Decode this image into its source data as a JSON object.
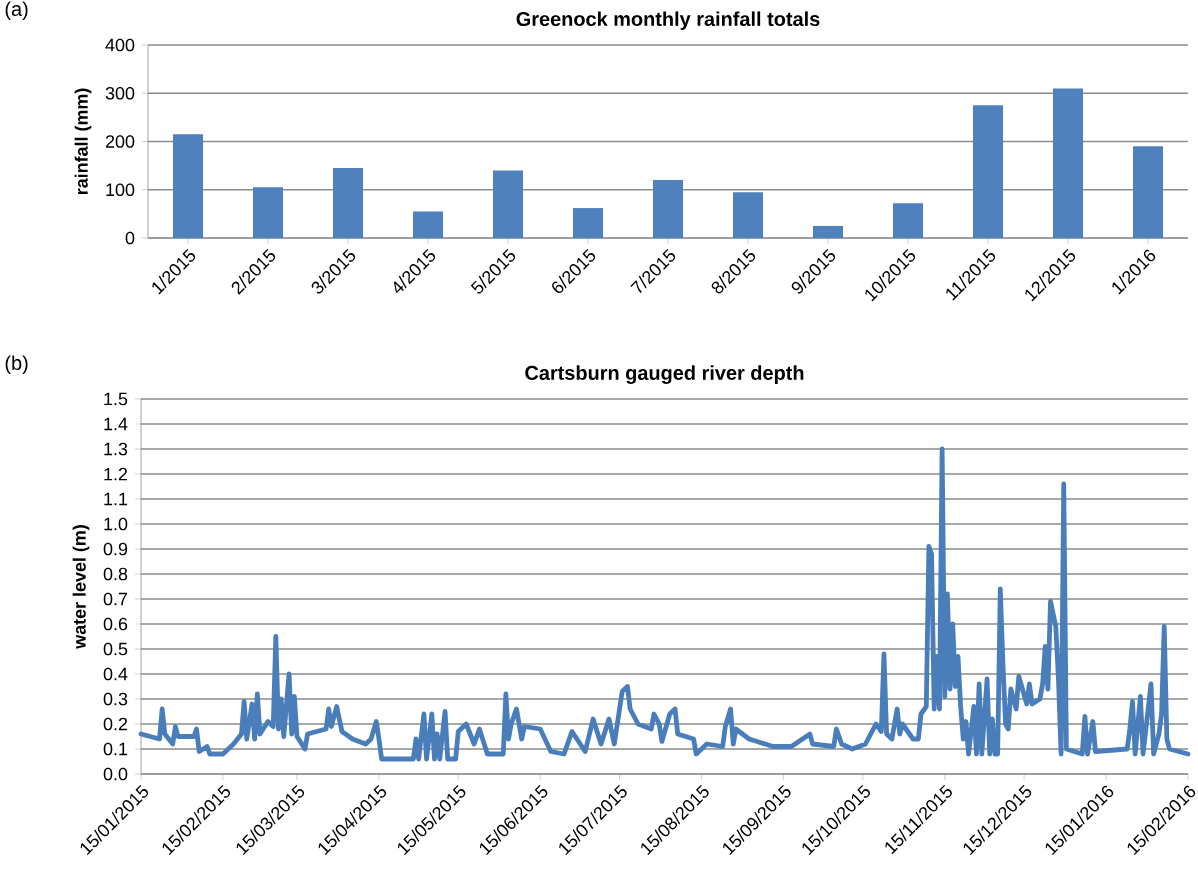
{
  "chart_data": [
    {
      "type": "bar",
      "title": "Greenock monthly rainfall totals",
      "ylabel": "rainfall (mm)",
      "annotations": [
        "(a)"
      ],
      "categories": [
        "1/2015",
        "2/2015",
        "3/2015",
        "4/2015",
        "5/2015",
        "6/2015",
        "7/2015",
        "8/2015",
        "9/2015",
        "10/2015",
        "11/2015",
        "12/2015",
        "1/2016"
      ],
      "values": [
        215,
        105,
        145,
        55,
        140,
        62,
        120,
        95,
        25,
        72,
        275,
        310,
        190
      ],
      "color": "#4f81bd",
      "ylim": [
        0,
        400
      ],
      "yticks": [
        0,
        100,
        200,
        300,
        400
      ],
      "grid": "y"
    },
    {
      "type": "line",
      "title": "Cartsburn gauged river depth",
      "ylabel": "water level (m)",
      "annotations": [
        "(b)"
      ],
      "color": "#4a7ebb",
      "grid": "y",
      "line_style": "solid",
      "x": [
        "2015-01-15",
        "2015-01-22",
        "2015-01-23",
        "2015-01-24",
        "2015-01-27",
        "2015-01-28",
        "2015-01-29",
        "2015-02-04",
        "2015-02-05",
        "2015-02-06",
        "2015-02-09",
        "2015-02-10",
        "2015-02-15",
        "2015-02-19",
        "2015-02-22",
        "2015-02-23",
        "2015-02-24",
        "2015-02-26",
        "2015-02-27",
        "2015-02-28",
        "2015-03-01",
        "2015-03-04",
        "2015-03-06",
        "2015-03-07",
        "2015-03-08",
        "2015-03-09",
        "2015-03-10",
        "2015-03-12",
        "2015-03-13",
        "2015-03-14",
        "2015-03-15",
        "2015-03-18",
        "2015-03-19",
        "2015-03-26",
        "2015-03-27",
        "2015-03-28",
        "2015-03-30",
        "2015-04-01",
        "2015-04-05",
        "2015-04-10",
        "2015-04-12",
        "2015-04-14",
        "2015-04-15",
        "2015-04-16",
        "2015-04-28",
        "2015-04-29",
        "2015-04-30",
        "2015-05-02",
        "2015-05-03",
        "2015-05-05",
        "2015-05-06",
        "2015-05-07",
        "2015-05-08",
        "2015-05-10",
        "2015-05-11",
        "2015-05-14",
        "2015-05-15",
        "2015-05-18",
        "2015-05-21",
        "2015-05-23",
        "2015-05-26",
        "2015-06-01",
        "2015-06-02",
        "2015-06-03",
        "2015-06-04",
        "2015-06-06",
        "2015-06-08",
        "2015-06-09",
        "2015-06-15",
        "2015-06-19",
        "2015-06-24",
        "2015-06-27",
        "2015-07-02",
        "2015-07-05",
        "2015-07-08",
        "2015-07-11",
        "2015-07-13",
        "2015-07-16",
        "2015-07-18",
        "2015-07-19",
        "2015-07-22",
        "2015-07-27",
        "2015-07-28",
        "2015-07-30",
        "2015-07-31",
        "2015-08-03",
        "2015-08-05",
        "2015-08-06",
        "2015-08-12",
        "2015-08-13",
        "2015-08-17",
        "2015-08-23",
        "2015-08-24",
        "2015-08-26",
        "2015-08-27",
        "2015-08-28",
        "2015-09-02",
        "2015-09-11",
        "2015-09-18",
        "2015-09-25",
        "2015-09-26",
        "2015-10-04",
        "2015-10-05",
        "2015-10-07",
        "2015-10-11",
        "2015-10-16",
        "2015-10-20",
        "2015-10-22",
        "2015-10-23",
        "2015-10-24",
        "2015-10-26",
        "2015-10-28",
        "2015-10-29",
        "2015-10-30",
        "2015-11-03",
        "2015-11-05",
        "2015-11-06",
        "2015-11-08",
        "2015-11-09",
        "2015-11-10",
        "2015-11-11",
        "2015-11-12",
        "2015-11-13",
        "2015-11-14",
        "2015-11-15",
        "2015-11-16",
        "2015-11-17",
        "2015-11-18",
        "2015-11-19",
        "2015-11-20",
        "2015-11-21",
        "2015-11-22",
        "2015-11-23",
        "2015-11-24",
        "2015-11-26",
        "2015-11-27",
        "2015-11-28",
        "2015-11-29",
        "2015-12-01",
        "2015-12-02",
        "2015-12-03",
        "2015-12-04",
        "2015-12-05",
        "2015-12-06",
        "2015-12-07",
        "2015-12-08",
        "2015-12-09",
        "2015-12-10",
        "2015-12-12",
        "2015-12-13",
        "2015-12-16",
        "2015-12-17",
        "2015-12-18",
        "2015-12-21",
        "2015-12-22",
        "2015-12-23",
        "2015-12-24",
        "2015-12-25",
        "2015-12-27",
        "2015-12-28",
        "2015-12-29",
        "2015-12-30",
        "2015-12-31",
        "2016-01-06",
        "2016-01-07",
        "2016-01-08",
        "2016-01-10",
        "2016-01-11",
        "2016-01-23",
        "2016-01-24",
        "2016-01-25",
        "2016-01-26",
        "2016-01-28",
        "2016-01-29",
        "2016-02-01",
        "2016-02-02",
        "2016-02-04",
        "2016-02-05",
        "2016-02-06",
        "2016-02-07",
        "2016-02-08",
        "2016-02-15"
      ],
      "values": [
        0.16,
        0.14,
        0.26,
        0.16,
        0.12,
        0.19,
        0.15,
        0.15,
        0.18,
        0.09,
        0.11,
        0.08,
        0.08,
        0.12,
        0.16,
        0.29,
        0.14,
        0.28,
        0.14,
        0.32,
        0.16,
        0.21,
        0.19,
        0.55,
        0.18,
        0.3,
        0.15,
        0.4,
        0.16,
        0.31,
        0.15,
        0.1,
        0.16,
        0.18,
        0.26,
        0.19,
        0.27,
        0.17,
        0.14,
        0.12,
        0.14,
        0.21,
        0.14,
        0.06,
        0.06,
        0.14,
        0.06,
        0.24,
        0.06,
        0.24,
        0.06,
        0.16,
        0.06,
        0.25,
        0.06,
        0.06,
        0.17,
        0.2,
        0.12,
        0.18,
        0.08,
        0.08,
        0.32,
        0.14,
        0.2,
        0.26,
        0.14,
        0.19,
        0.18,
        0.09,
        0.08,
        0.17,
        0.09,
        0.22,
        0.12,
        0.22,
        0.12,
        0.33,
        0.35,
        0.26,
        0.2,
        0.18,
        0.24,
        0.2,
        0.13,
        0.24,
        0.26,
        0.16,
        0.14,
        0.08,
        0.12,
        0.11,
        0.19,
        0.26,
        0.12,
        0.18,
        0.14,
        0.11,
        0.11,
        0.16,
        0.12,
        0.11,
        0.18,
        0.12,
        0.1,
        0.12,
        0.2,
        0.17,
        0.48,
        0.16,
        0.14,
        0.26,
        0.16,
        0.2,
        0.14,
        0.14,
        0.24,
        0.27,
        0.91,
        0.88,
        0.26,
        0.47,
        0.26,
        1.3,
        0.31,
        0.72,
        0.34,
        0.6,
        0.35,
        0.47,
        0.27,
        0.14,
        0.21,
        0.08,
        0.27,
        0.08,
        0.36,
        0.08,
        0.38,
        0.08,
        0.22,
        0.08,
        0.08,
        0.74,
        0.44,
        0.2,
        0.18,
        0.34,
        0.26,
        0.39,
        0.28,
        0.36,
        0.28,
        0.3,
        0.36,
        0.51,
        0.34,
        0.69,
        0.59,
        0.38,
        0.08,
        1.16,
        0.1,
        0.08,
        0.23,
        0.08,
        0.21,
        0.09,
        0.1,
        0.18,
        0.29,
        0.08,
        0.31,
        0.08,
        0.36,
        0.08,
        0.16,
        0.24,
        0.59,
        0.14,
        0.1,
        0.08
      ],
      "xlim": [
        "2015-01-15",
        "2016-02-15"
      ],
      "xticks": [
        {
          "value": "2015-01-15",
          "label": "15/01/2015"
        },
        {
          "value": "2015-02-15",
          "label": "15/02/2015"
        },
        {
          "value": "2015-03-15",
          "label": "15/03/2015"
        },
        {
          "value": "2015-04-15",
          "label": "15/04/2015"
        },
        {
          "value": "2015-05-15",
          "label": "15/05/2015"
        },
        {
          "value": "2015-06-15",
          "label": "15/06/2015"
        },
        {
          "value": "2015-07-15",
          "label": "15/07/2015"
        },
        {
          "value": "2015-08-15",
          "label": "15/08/2015"
        },
        {
          "value": "2015-09-15",
          "label": "15/09/2015"
        },
        {
          "value": "2015-10-15",
          "label": "15/10/2015"
        },
        {
          "value": "2015-11-15",
          "label": "15/11/2015"
        },
        {
          "value": "2015-12-15",
          "label": "15/12/2015"
        },
        {
          "value": "2016-01-15",
          "label": "15/01/2016"
        },
        {
          "value": "2016-02-15",
          "label": "15/02/2016"
        }
      ],
      "ylim": [
        0,
        1.5
      ],
      "yticks": [
        {
          "value": 0,
          "label": "0.0"
        },
        {
          "value": 0.1,
          "label": "0.1"
        },
        {
          "value": 0.2,
          "label": "0.2"
        },
        {
          "value": 0.3,
          "label": "0.3"
        },
        {
          "value": 0.4,
          "label": "0.4"
        },
        {
          "value": 0.5,
          "label": "0.5"
        },
        {
          "value": 0.6,
          "label": "0.6"
        },
        {
          "value": 0.7,
          "label": "0.7"
        },
        {
          "value": 0.8,
          "label": "0.8"
        },
        {
          "value": 0.9,
          "label": "0.9"
        },
        {
          "value": 1.0,
          "label": "1.0"
        },
        {
          "value": 1.1,
          "label": "1.1"
        },
        {
          "value": 1.2,
          "label": "1.2"
        },
        {
          "value": 1.3,
          "label": "1.3"
        },
        {
          "value": 1.4,
          "label": "1.4"
        },
        {
          "value": 1.5,
          "label": "1.5"
        }
      ]
    }
  ]
}
